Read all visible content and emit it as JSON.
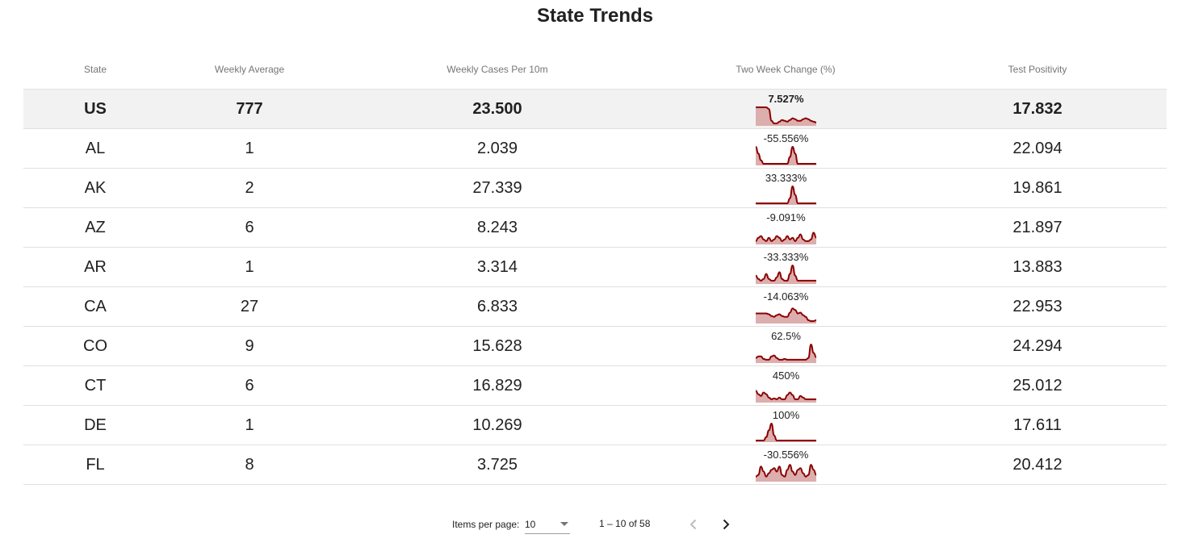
{
  "title": "State Trends",
  "columns": {
    "state": "State",
    "weekly_average": "Weekly Average",
    "weekly_cases": "Weekly Cases Per 10m",
    "two_week_change": "Two Week Change (%)",
    "test_positivity": "Test Positivity"
  },
  "rows": [
    {
      "state": "US",
      "avg": "777",
      "cases": "23.500",
      "change": "7.527%",
      "positivity": "17.832",
      "trend": [
        1,
        1,
        1,
        1,
        1,
        0.9,
        0.2,
        0.05,
        0.05,
        0.15,
        0.25,
        0.2,
        0.15,
        0.25,
        0.35,
        0.3,
        0.2,
        0.2,
        0.3,
        0.35,
        0.3,
        0.2,
        0.15,
        0.1
      ]
    },
    {
      "state": "AL",
      "avg": "1",
      "cases": "2.039",
      "change": "-55.556%",
      "positivity": "22.094",
      "trend": [
        1,
        0.6,
        0.2,
        0,
        0,
        0,
        0,
        0,
        0,
        0,
        0,
        0,
        0,
        0.4,
        1,
        0.6,
        0,
        0,
        0,
        0,
        0,
        0,
        0,
        0
      ]
    },
    {
      "state": "AK",
      "avg": "2",
      "cases": "27.339",
      "change": "33.333%",
      "positivity": "19.861",
      "trend": [
        0,
        0,
        0,
        0,
        0,
        0,
        0,
        0,
        0,
        0,
        0,
        0,
        0,
        0.3,
        1,
        0.5,
        0,
        0,
        0,
        0,
        0,
        0,
        0,
        0
      ]
    },
    {
      "state": "AZ",
      "avg": "6",
      "cases": "8.243",
      "change": "-9.091%",
      "positivity": "21.897",
      "trend": [
        0.1,
        0.3,
        0.4,
        0.2,
        0.1,
        0.3,
        0.1,
        0.2,
        0.4,
        0.3,
        0.1,
        0.2,
        0.4,
        0.2,
        0.3,
        0.1,
        0.3,
        0.5,
        0.2,
        0.1,
        0.1,
        0.2,
        0.6,
        0.3
      ]
    },
    {
      "state": "AR",
      "avg": "1",
      "cases": "3.314",
      "change": "-33.333%",
      "positivity": "13.883",
      "trend": [
        0.4,
        0.2,
        0.1,
        0.2,
        0.5,
        0.2,
        0.1,
        0.1,
        0.3,
        0.6,
        0.2,
        0.1,
        0.1,
        0.5,
        1,
        0.4,
        0.1,
        0.1,
        0.1,
        0.1,
        0.1,
        0.1,
        0.1,
        0.1
      ]
    },
    {
      "state": "CA",
      "avg": "27",
      "cases": "6.833",
      "change": "-14.063%",
      "positivity": "22.953",
      "trend": [
        0.5,
        0.5,
        0.5,
        0.5,
        0.5,
        0.45,
        0.35,
        0.3,
        0.4,
        0.45,
        0.35,
        0.3,
        0.3,
        0.55,
        0.8,
        0.7,
        0.5,
        0.55,
        0.4,
        0.3,
        0.1,
        0.05,
        0.05,
        0.1
      ]
    },
    {
      "state": "CO",
      "avg": "9",
      "cases": "15.628",
      "change": "62.5%",
      "positivity": "24.294",
      "trend": [
        0.2,
        0.3,
        0.3,
        0.15,
        0.1,
        0.1,
        0.3,
        0.35,
        0.2,
        0.1,
        0.1,
        0.15,
        0.1,
        0.1,
        0.1,
        0.1,
        0.1,
        0.1,
        0.1,
        0.1,
        0.2,
        1,
        0.5,
        0.25
      ]
    },
    {
      "state": "CT",
      "avg": "6",
      "cases": "16.829",
      "change": "450%",
      "positivity": "25.012",
      "trend": [
        0.6,
        0.4,
        0.3,
        0.5,
        0.4,
        0.2,
        0.1,
        0.15,
        0.1,
        0.2,
        0.1,
        0.1,
        0.35,
        0.5,
        0.35,
        0.1,
        0.1,
        0.3,
        0.2,
        0.1,
        0.1,
        0.1,
        0.1,
        0.1
      ]
    },
    {
      "state": "DE",
      "avg": "1",
      "cases": "10.269",
      "change": "100%",
      "positivity": "17.611",
      "trend": [
        0,
        0,
        0,
        0,
        0.2,
        0.6,
        1,
        0.3,
        0,
        0,
        0,
        0,
        0,
        0,
        0,
        0,
        0,
        0,
        0,
        0,
        0,
        0,
        0,
        0
      ]
    },
    {
      "state": "FL",
      "avg": "8",
      "cases": "3.725",
      "change": "-30.556%",
      "positivity": "20.412",
      "trend": [
        0.2,
        0.3,
        0.8,
        0.5,
        0.2,
        0.4,
        0.6,
        0.7,
        0.5,
        0.8,
        0.3,
        0.2,
        0.6,
        0.9,
        0.5,
        0.3,
        0.6,
        0.7,
        0.4,
        0.2,
        0.3,
        0.9,
        0.6,
        0.3
      ]
    }
  ],
  "pager": {
    "items_label": "Items per page:",
    "page_size": "10",
    "range": "1 – 10 of 58"
  },
  "colors": {
    "spark_line": "#8b0000",
    "spark_fill": "#dcaeae",
    "us_row_bg": "#f2f2f2"
  },
  "icons": {
    "prev": "chevron-left-icon",
    "next": "chevron-right-icon",
    "dropdown": "triangle-down-icon"
  }
}
